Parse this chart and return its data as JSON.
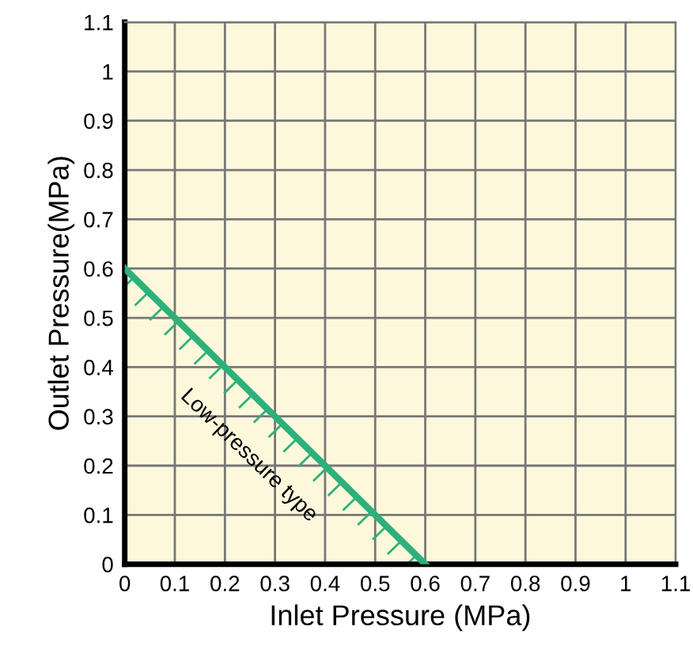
{
  "chart_data": {
    "type": "line",
    "xlabel": "Inlet Pressure (MPa)",
    "ylabel": "Outlet Pressure(MPa)",
    "x": [
      0,
      0.6
    ],
    "series": [
      {
        "color": "#2eb07a",
        "values": [
          0.6,
          0
        ]
      }
    ],
    "annotations": [
      "Low-pressure type"
    ],
    "xlim": [
      0,
      1.1
    ],
    "ylim": [
      0,
      1.1
    ],
    "xticks": [
      0,
      0.1,
      0.2,
      0.3,
      0.4,
      0.5,
      0.6,
      0.7,
      0.8,
      0.9,
      1,
      1.1
    ],
    "yticks": [
      0,
      0.1,
      0.2,
      0.3,
      0.4,
      0.5,
      0.6,
      0.7,
      0.8,
      0.9,
      1,
      1.1
    ],
    "grid": true,
    "marker": "none",
    "line_style": "solid"
  }
}
